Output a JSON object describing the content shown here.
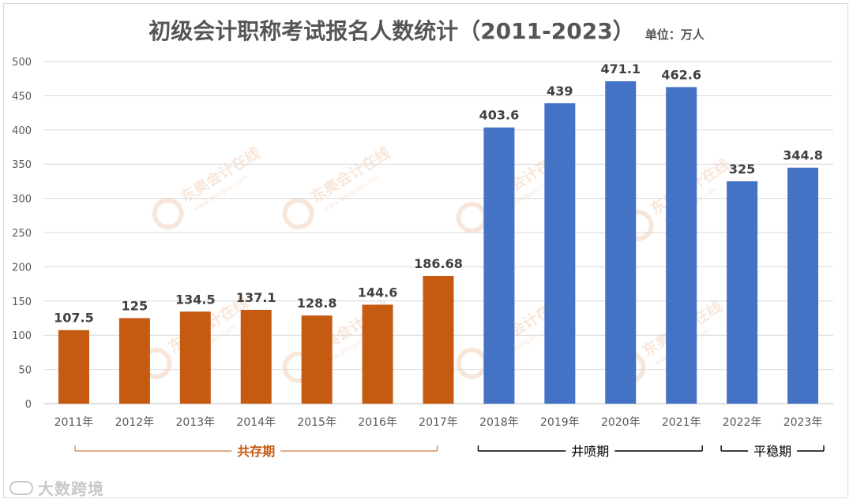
{
  "chart_data": {
    "type": "bar",
    "title": "初级会计职称考试报名人数统计（2011-2023）",
    "unit_label": "单位：万人",
    "categories": [
      "2011年",
      "2012年",
      "2013年",
      "2014年",
      "2015年",
      "2016年",
      "2017年",
      "2018年",
      "2019年",
      "2020年",
      "2021年",
      "2022年",
      "2023年"
    ],
    "values": [
      107.5,
      125,
      134.5,
      137.1,
      128.8,
      144.6,
      186.68,
      403.6,
      439,
      471.1,
      462.6,
      325,
      344.8
    ],
    "value_labels": [
      "107.5",
      "125",
      "134.5",
      "137.1",
      "128.8",
      "144.6",
      "186.68",
      "403.6",
      "439",
      "471.1",
      "462.6",
      "325",
      "344.8"
    ],
    "bar_colors": [
      "#c55a11",
      "#c55a11",
      "#c55a11",
      "#c55a11",
      "#c55a11",
      "#c55a11",
      "#c55a11",
      "#4472c4",
      "#4472c4",
      "#4472c4",
      "#4472c4",
      "#4472c4",
      "#4472c4"
    ],
    "ylim": [
      0,
      500
    ],
    "yticks": [
      0,
      50,
      100,
      150,
      200,
      250,
      300,
      350,
      400,
      450,
      500
    ],
    "grid": true,
    "periods": [
      {
        "label": "共存期",
        "color": "#c55a11",
        "start": 0,
        "end": 6
      },
      {
        "label": "井喷期",
        "color": "#000000",
        "start": 7,
        "end": 10
      },
      {
        "label": "平稳期",
        "color": "#000000",
        "start": 11,
        "end": 12
      }
    ],
    "watermark": "东奥会计在线 www.dongao.com"
  },
  "brand": {
    "label": "大数跨境"
  },
  "colors": {
    "axis_text": "#595959",
    "grid": "#d9d9d9",
    "title": "#555555"
  }
}
